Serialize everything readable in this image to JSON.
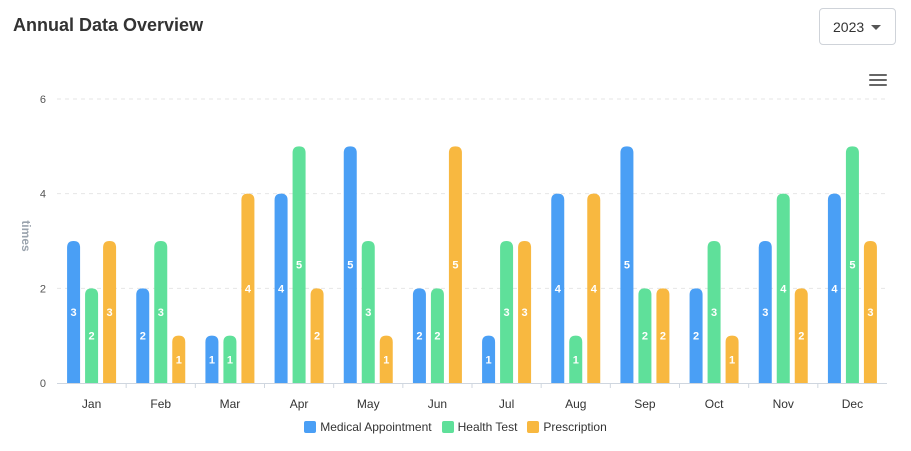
{
  "header": {
    "title": "Annual Data Overview",
    "year_selected": "2023"
  },
  "icons": {
    "menu": "hamburger-menu-icon",
    "dropdown": "chevron-down-icon"
  },
  "chart_data": {
    "type": "bar",
    "categories": [
      "Jan",
      "Feb",
      "Mar",
      "Apr",
      "May",
      "Jun",
      "Jul",
      "Aug",
      "Sep",
      "Oct",
      "Nov",
      "Dec"
    ],
    "series": [
      {
        "name": "Medical Appointment",
        "color": "#4a9ff5",
        "values": [
          3,
          2,
          1,
          4,
          5,
          2,
          1,
          4,
          5,
          2,
          3,
          4
        ]
      },
      {
        "name": "Health Test",
        "color": "#5fe09a",
        "values": [
          2,
          3,
          1,
          5,
          3,
          2,
          3,
          1,
          2,
          3,
          4,
          5
        ]
      },
      {
        "name": "Prescription",
        "color": "#f8b840",
        "values": [
          3,
          1,
          4,
          2,
          1,
          5,
          3,
          4,
          2,
          1,
          2,
          3
        ]
      }
    ],
    "ylabel": "times",
    "ylim": [
      0,
      6
    ],
    "yticks": [
      0,
      2,
      4,
      6
    ],
    "grid": true,
    "legend_position": "bottom",
    "data_labels": true
  }
}
